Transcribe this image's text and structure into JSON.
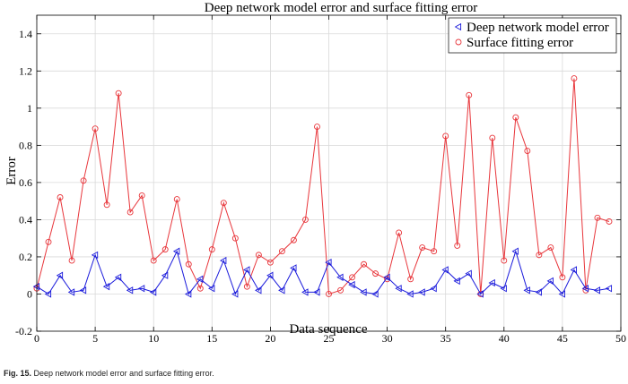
{
  "chart_data": {
    "type": "line",
    "title": "Deep network model error and surface fitting error",
    "xlabel": "Data sequence",
    "ylabel": "Error",
    "xlim": [
      0,
      50
    ],
    "ylim": [
      -0.2,
      1.5
    ],
    "xticks": [
      0,
      5,
      10,
      15,
      20,
      25,
      30,
      35,
      40,
      45,
      50
    ],
    "yticks": [
      -0.2,
      0,
      0.2,
      0.4,
      0.6,
      0.8,
      1,
      1.2,
      1.4
    ],
    "ytick_labels": [
      "-0.2",
      "0",
      "0.2",
      "0.4",
      "0.6",
      "0.8",
      "1",
      "1.2",
      "1.4"
    ],
    "grid": true,
    "legend_position": "top-right",
    "x": [
      0,
      1,
      2,
      3,
      4,
      5,
      6,
      7,
      8,
      9,
      10,
      11,
      12,
      13,
      14,
      15,
      16,
      17,
      18,
      19,
      20,
      21,
      22,
      23,
      24,
      25,
      26,
      27,
      28,
      29,
      30,
      31,
      32,
      33,
      34,
      35,
      36,
      37,
      38,
      39,
      40,
      41,
      42,
      43,
      44,
      45,
      46,
      47,
      48,
      49
    ],
    "series": [
      {
        "name": "Deep network model error",
        "color": "#1a1adb",
        "marker": "triangle-left",
        "values": [
          0.04,
          0.0,
          0.1,
          0.01,
          0.02,
          0.21,
          0.04,
          0.09,
          0.02,
          0.03,
          0.01,
          0.1,
          0.23,
          0.0,
          0.08,
          0.03,
          0.18,
          0.0,
          0.13,
          0.02,
          0.1,
          0.02,
          0.14,
          0.01,
          0.01,
          0.17,
          0.09,
          0.05,
          0.01,
          0.0,
          0.09,
          0.03,
          0.0,
          0.01,
          0.03,
          0.13,
          0.07,
          0.11,
          0.0,
          0.06,
          0.03,
          0.23,
          0.02,
          0.01,
          0.07,
          0.0,
          0.13,
          0.03,
          0.02,
          0.03
        ]
      },
      {
        "name": "Surface fitting error",
        "color": "#e8363b",
        "marker": "circle",
        "values": [
          0.03,
          0.28,
          0.52,
          0.18,
          0.61,
          0.89,
          0.48,
          1.08,
          0.44,
          0.53,
          0.18,
          0.24,
          0.51,
          0.16,
          0.03,
          0.24,
          0.49,
          0.3,
          0.04,
          0.21,
          0.17,
          0.23,
          0.29,
          0.4,
          0.9,
          0.0,
          0.02,
          0.09,
          0.16,
          0.11,
          0.08,
          0.33,
          0.08,
          0.25,
          0.23,
          0.85,
          0.26,
          1.07,
          0.0,
          0.84,
          0.18,
          0.95,
          0.77,
          0.21,
          0.25,
          0.09,
          1.16,
          0.02,
          0.41,
          0.39
        ]
      }
    ]
  },
  "caption": {
    "label": "Fig. 15.",
    "text": "Deep network model error and surface fitting error."
  }
}
